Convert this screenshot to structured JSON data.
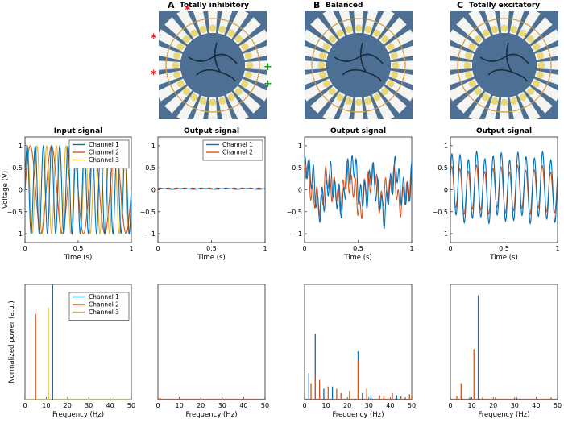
{
  "panel_labels": [
    {
      "letter": "A",
      "caption": "Totally inhibitory"
    },
    {
      "letter": "B",
      "caption": "Balanced"
    },
    {
      "letter": "C",
      "caption": "Totally excitatory"
    }
  ],
  "colors": {
    "channel_1": "#0072BD",
    "channel_2": "#D95319",
    "channel_3": "#EDB120",
    "marker_red": "#e02020",
    "marker_green": "#10a010",
    "photo_bg": "#4c6f93"
  },
  "micrograph_icons": [
    "electrode-array-photo",
    "red-asterisk-marker",
    "green-plus-marker"
  ],
  "chart_data": [
    {
      "id": "input-signal",
      "type": "line",
      "title": "Input signal",
      "xlabel": "Time (s)",
      "ylabel": "Voltage (V)",
      "xlim": [
        0,
        1
      ],
      "ylim": [
        -1.2,
        1.2
      ],
      "xticks": [
        "0",
        "0.5",
        "1"
      ],
      "yticks": [
        "1",
        "0.5",
        "0",
        "−0.5",
        "−1"
      ],
      "series": [
        {
          "name": "Channel 1",
          "color": "#0072BD",
          "components": [
            {
              "amp": 1.0,
              "freq": 13,
              "phase": 0
            }
          ]
        },
        {
          "name": "Channel 2",
          "color": "#D95319",
          "components": [
            {
              "amp": 1.0,
              "freq": 5,
              "phase": 0
            }
          ]
        },
        {
          "name": "Channel 3",
          "color": "#EDB120",
          "components": [
            {
              "amp": 1.0,
              "freq": 11,
              "phase": 0
            }
          ]
        }
      ],
      "legend": [
        "Channel 1",
        "Channel 2",
        "Channel 3"
      ],
      "legend_position": "top-right"
    },
    {
      "id": "output-inhibitory",
      "type": "line",
      "title": "Output signal",
      "xlabel": "Time (s)",
      "xlim": [
        0,
        1
      ],
      "ylim": [
        -1.2,
        1.2
      ],
      "xticks": [
        "0",
        "0.5",
        "1"
      ],
      "yticks": [
        "1",
        "0.5",
        "0",
        "−0.5",
        "−1"
      ],
      "series": [
        {
          "name": "Channel 1",
          "color": "#0072BD",
          "offset": 0.03,
          "components": [
            {
              "amp": 0.01,
              "freq": 13,
              "phase": 0
            }
          ]
        },
        {
          "name": "Channel 2",
          "color": "#D95319",
          "offset": 0.02,
          "components": [
            {
              "amp": 0.01,
              "freq": 5,
              "phase": 0.5
            }
          ]
        }
      ],
      "legend": [
        "Channel 1",
        "Channel 2"
      ],
      "legend_position": "top-right"
    },
    {
      "id": "output-balanced",
      "type": "line",
      "title": "Output signal",
      "xlabel": "Time (s)",
      "xlim": [
        0,
        1
      ],
      "ylim": [
        -1.2,
        1.2
      ],
      "xticks": [
        "0",
        "0.5",
        "1"
      ],
      "yticks": [
        "1",
        "0.5",
        "0",
        "−0.5",
        "−1"
      ],
      "series": [
        {
          "name": "Channel 1",
          "color": "#0072BD",
          "offset": 0.05,
          "components": [
            {
              "amp": 0.35,
              "freq": 5,
              "phase": 0.3
            },
            {
              "amp": 0.3,
              "freq": 25,
              "phase": 1.1
            },
            {
              "amp": 0.18,
              "freq": 2,
              "phase": 2.0
            },
            {
              "amp": 0.12,
              "freq": 13,
              "phase": 0.7
            }
          ]
        },
        {
          "name": "Channel 2",
          "color": "#D95319",
          "offset": 0.0,
          "components": [
            {
              "amp": 0.28,
              "freq": 5,
              "phase": 1.0
            },
            {
              "amp": 0.26,
              "freq": 25,
              "phase": 2.2
            },
            {
              "amp": 0.15,
              "freq": 11,
              "phase": 0.2
            },
            {
              "amp": 0.1,
              "freq": 3,
              "phase": 1.5
            }
          ]
        }
      ],
      "legend": [],
      "legend_position": "none"
    },
    {
      "id": "output-excitatory",
      "type": "line",
      "title": "Output signal",
      "xlabel": "Time (s)",
      "xlim": [
        0,
        1
      ],
      "ylim": [
        -1.2,
        1.2
      ],
      "xticks": [
        "0",
        "0.5",
        "1"
      ],
      "yticks": [
        "1",
        "0.5",
        "0",
        "−0.5",
        "−1"
      ],
      "series": [
        {
          "name": "Channel 1",
          "color": "#0072BD",
          "offset": 0.05,
          "components": [
            {
              "amp": 0.72,
              "freq": 13,
              "phase": 0.4
            },
            {
              "amp": 0.1,
              "freq": 5,
              "phase": 0.0
            }
          ]
        },
        {
          "name": "Channel 2",
          "color": "#D95319",
          "offset": 0.0,
          "components": [
            {
              "amp": 0.48,
              "freq": 13,
              "phase": 0.6
            },
            {
              "amp": 0.08,
              "freq": 5,
              "phase": 0.3
            }
          ]
        }
      ],
      "legend": [],
      "legend_position": "none"
    },
    {
      "id": "spectrum-input",
      "type": "bar",
      "xlabel": "Frequency (Hz)",
      "ylabel": "Normalized power (a.u.)",
      "xlim": [
        0,
        50
      ],
      "ylim": [
        0,
        1.05
      ],
      "xticks": [
        "0",
        "10",
        "20",
        "30",
        "40",
        "50"
      ],
      "series": [
        {
          "name": "Channel 1",
          "color": "#0072BD",
          "points": [
            [
              13,
              1.05
            ]
          ]
        },
        {
          "name": "Channel 2",
          "color": "#D95319",
          "points": [
            [
              5,
              0.78
            ]
          ]
        },
        {
          "name": "Channel 3",
          "color": "#EDB120",
          "points": [
            [
              11,
              0.84
            ]
          ]
        }
      ],
      "legend": [
        "Channel 1",
        "Channel 2",
        "Channel 3"
      ],
      "legend_position": "top-right"
    },
    {
      "id": "spectrum-inhibitory",
      "type": "bar",
      "xlabel": "Frequency (Hz)",
      "xlim": [
        0,
        50
      ],
      "ylim": [
        0,
        1.05
      ],
      "xticks": [
        "0",
        "10",
        "20",
        "30",
        "40",
        "50"
      ],
      "series": [
        {
          "name": "Channel 1",
          "color": "#0072BD",
          "points": [
            [
              1,
              0.01
            ]
          ]
        },
        {
          "name": "Channel 2",
          "color": "#D95319",
          "points": [
            [
              1,
              0.015
            ]
          ]
        }
      ],
      "legend": [],
      "legend_position": "none"
    },
    {
      "id": "spectrum-balanced",
      "type": "bar",
      "xlabel": "Frequency (Hz)",
      "xlim": [
        0,
        50
      ],
      "ylim": [
        0,
        1.05
      ],
      "xticks": [
        "0",
        "10",
        "20",
        "30",
        "40",
        "50"
      ],
      "series": [
        {
          "name": "Channel 1",
          "color": "#0072BD",
          "points": [
            [
              2,
              0.24
            ],
            [
              5,
              0.6
            ],
            [
              9,
              0.1
            ],
            [
              13,
              0.12
            ],
            [
              25,
              0.44
            ],
            [
              27,
              0.06
            ],
            [
              31,
              0.04
            ],
            [
              43,
              0.04
            ],
            [
              47,
              0.02
            ]
          ]
        },
        {
          "name": "Channel 2",
          "color": "#D95319",
          "points": [
            [
              3,
              0.15
            ],
            [
              5,
              0.22
            ],
            [
              7,
              0.18
            ],
            [
              11,
              0.12
            ],
            [
              15,
              0.1
            ],
            [
              17,
              0.06
            ],
            [
              21,
              0.08
            ],
            [
              25,
              0.36
            ],
            [
              29,
              0.1
            ],
            [
              35,
              0.04
            ],
            [
              37,
              0.04
            ],
            [
              41,
              0.06
            ],
            [
              45,
              0.03
            ],
            [
              49,
              0.05
            ]
          ]
        }
      ],
      "legend": [],
      "legend_position": "none"
    },
    {
      "id": "spectrum-excitatory",
      "type": "bar",
      "xlabel": "Frequency (Hz)",
      "xlim": [
        0,
        50
      ],
      "ylim": [
        0,
        1.05
      ],
      "xticks": [
        "0",
        "10",
        "20",
        "30",
        "40",
        "50"
      ],
      "series": [
        {
          "name": "Channel 1",
          "color": "#0072BD",
          "points": [
            [
              13,
              0.95
            ],
            [
              9,
              0.02
            ],
            [
              31,
              0.02
            ]
          ]
        },
        {
          "name": "Channel 2",
          "color": "#D95319",
          "points": [
            [
              11,
              0.46
            ],
            [
              5,
              0.15
            ],
            [
              3,
              0.03
            ],
            [
              15,
              0.02
            ],
            [
              21,
              0.02
            ],
            [
              29,
              0.01
            ],
            [
              47,
              0.02
            ]
          ]
        }
      ],
      "legend": [],
      "legend_position": "none"
    }
  ]
}
